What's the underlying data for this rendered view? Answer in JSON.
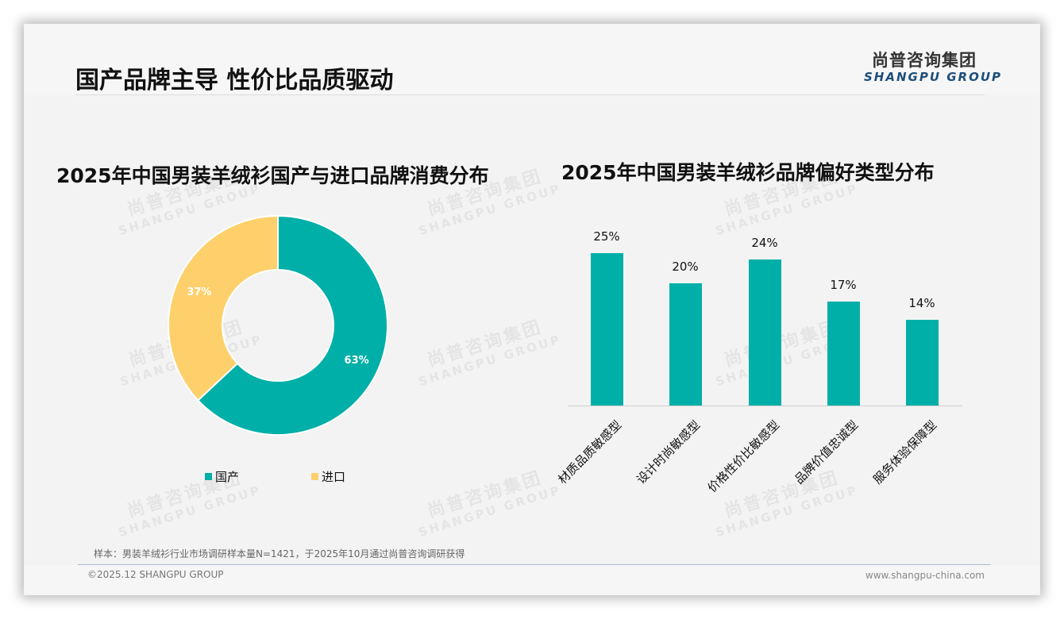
{
  "page": {
    "title": "国产品牌主导 性价比品质驱动",
    "logo": {
      "cn": "尚普咨询集团",
      "en": "SHANGPU GROUP"
    },
    "watermark": {
      "cn": "尚普咨询集团",
      "en": "SHANGPU GROUP"
    },
    "note": "样本：男装羊绒衫行业市场调研样本量N=1421，于2025年10月通过尚普咨询调研获得",
    "copyright": "©2025.12 SHANGPU GROUP",
    "website": "www.shangpu-china.com"
  },
  "colors": {
    "teal": "#00afa8",
    "yellow": "#fdd06b",
    "logo_blue": "#1d4e7a"
  },
  "chart_data": [
    {
      "type": "pie",
      "variant": "donut",
      "title": "2025年中国男装羊绒衫国产与进口品牌消费分布",
      "categories": [
        "国产",
        "进口"
      ],
      "values": [
        63,
        37
      ],
      "labels": [
        "63%",
        "37%"
      ],
      "colors": [
        "#00afa8",
        "#fdd06b"
      ],
      "legend_position": "bottom"
    },
    {
      "type": "bar",
      "title": "2025年中国男装羊绒衫品牌偏好类型分布",
      "categories": [
        "材质品质敏感型",
        "设计时尚敏感型",
        "价格性价比敏感型",
        "品牌价值忠诚型",
        "服务体验保障型"
      ],
      "values": [
        25,
        20,
        24,
        17,
        14
      ],
      "labels": [
        "25%",
        "20%",
        "24%",
        "17%",
        "14%"
      ],
      "unit": "%",
      "color": "#00afa8",
      "xlabel": "",
      "ylabel": "",
      "grid": false,
      "ylim": [
        0,
        25
      ]
    }
  ]
}
